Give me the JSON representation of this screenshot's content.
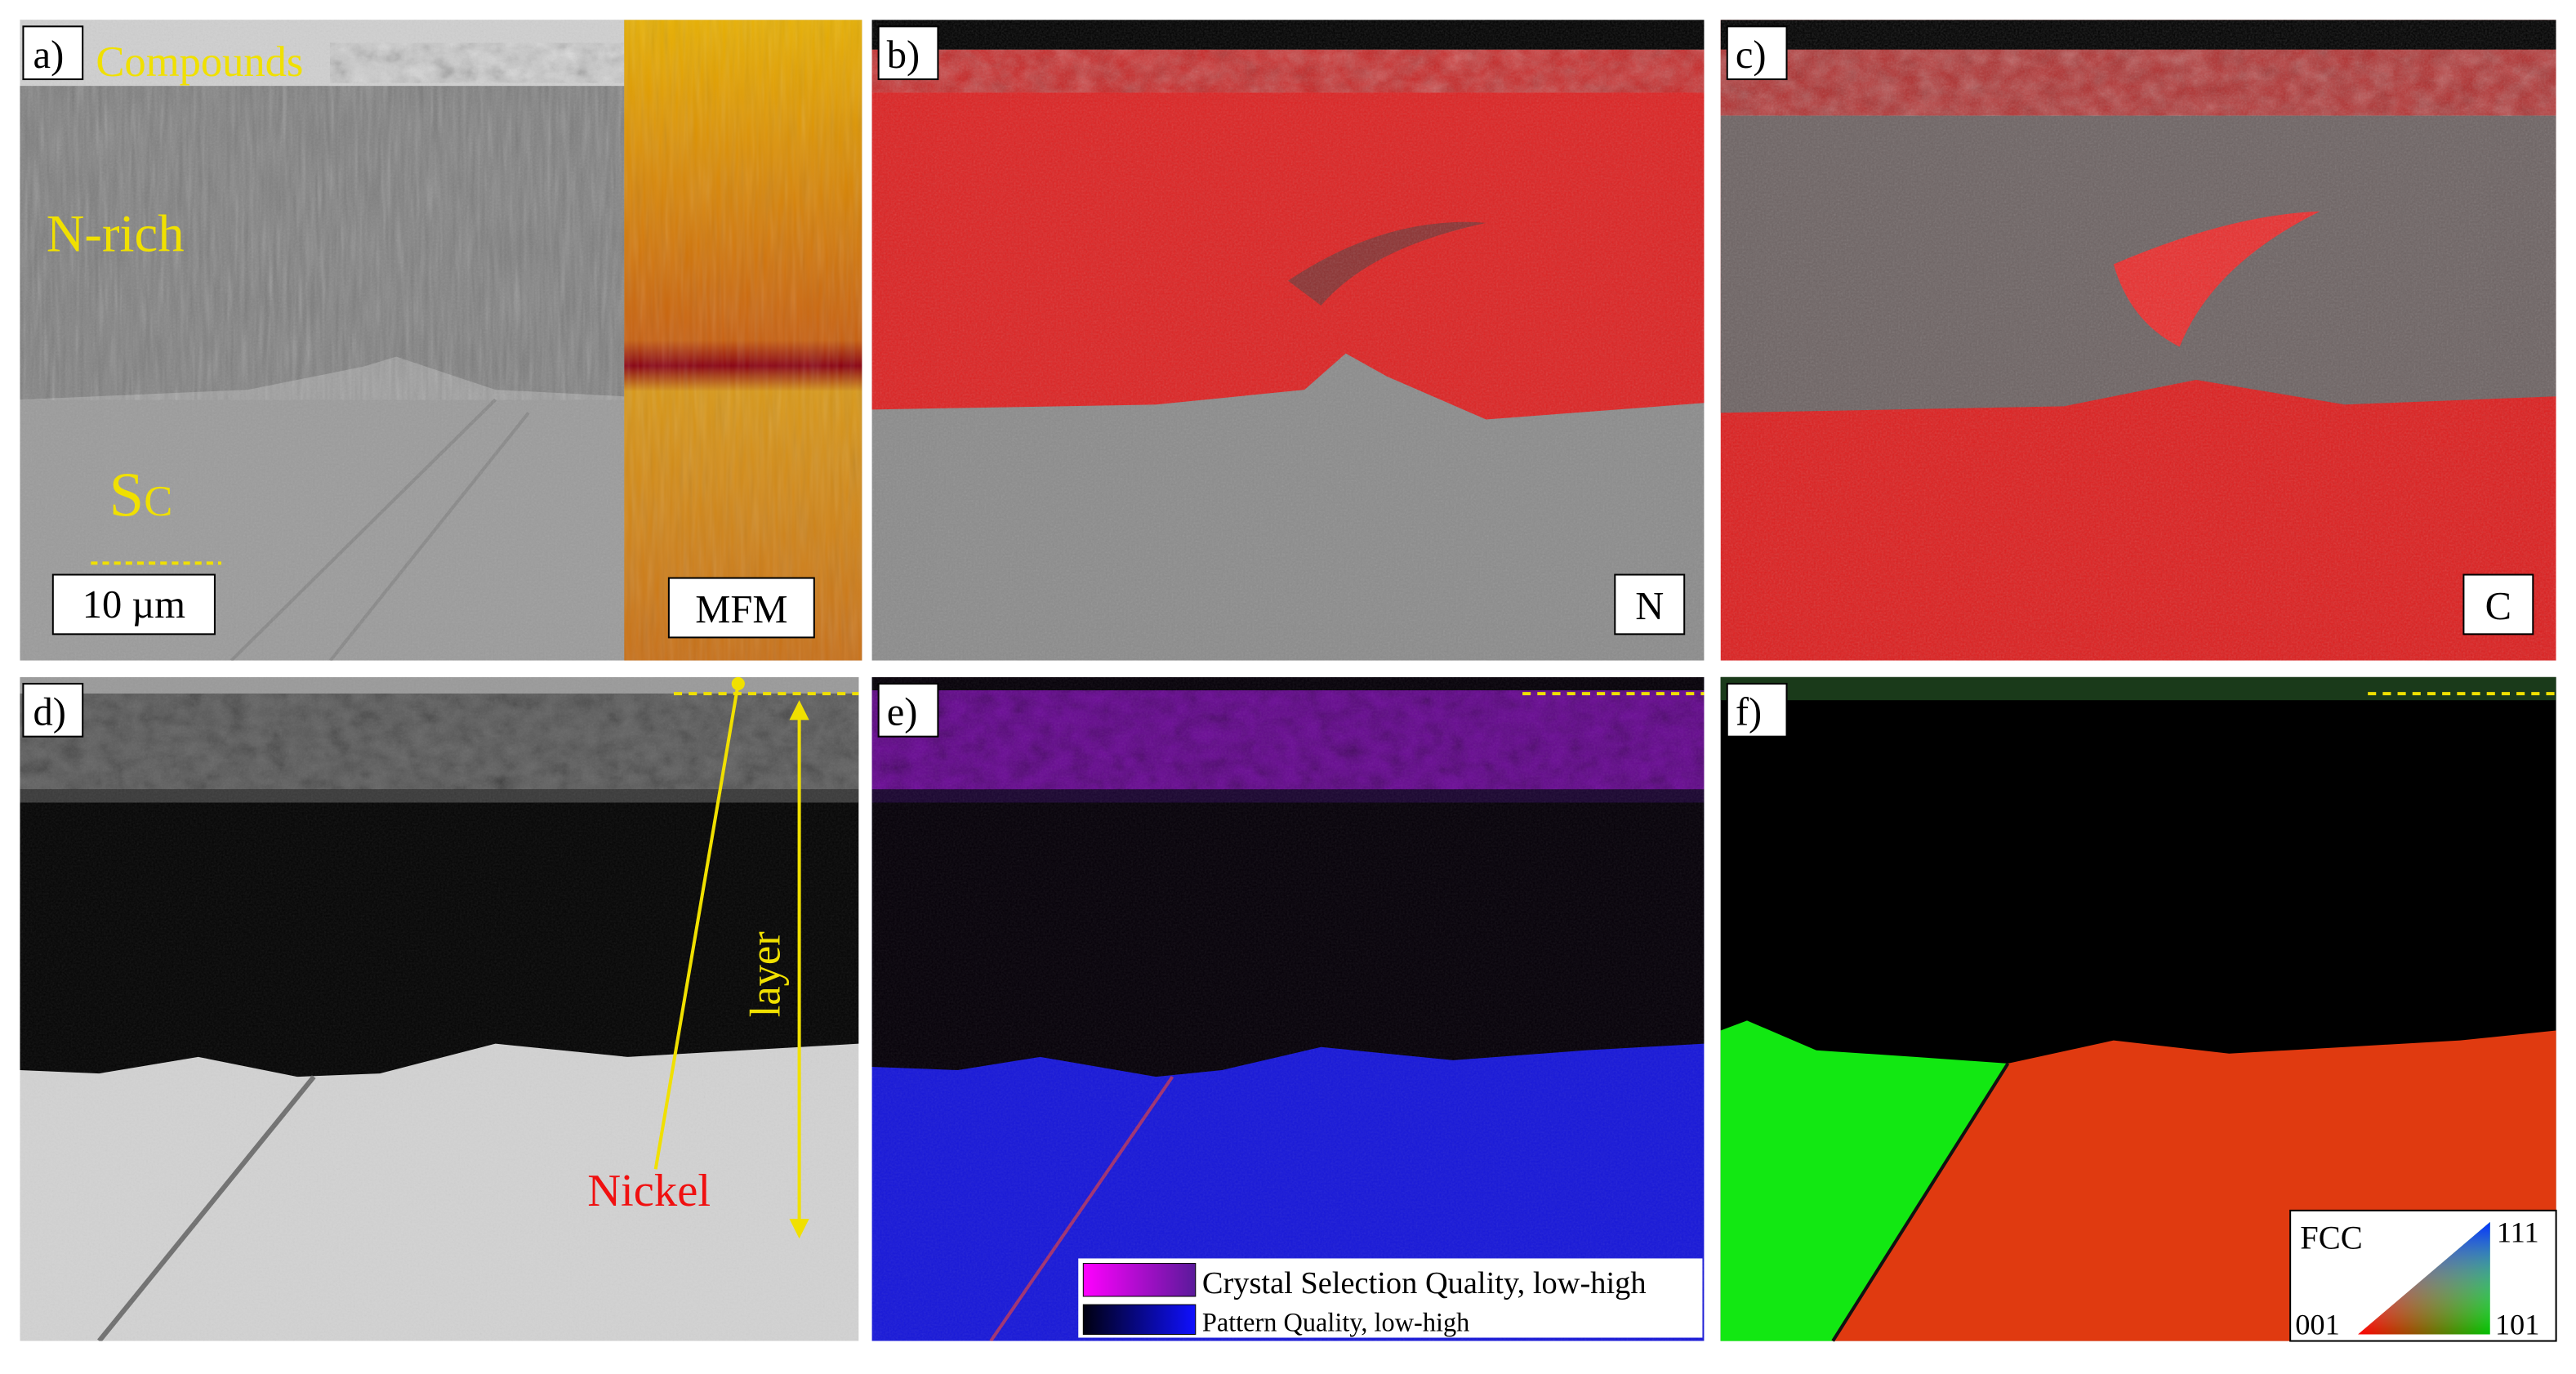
{
  "panel_a": {
    "label": "a)",
    "compounds": "Compounds",
    "n_rich": "N-rich",
    "substrate": {
      "main": "S",
      "sub": "C"
    },
    "scale_bar": "10 µm",
    "inset": "MFM"
  },
  "panel_b": {
    "label": "b)",
    "element": "N"
  },
  "panel_c": {
    "label": "c)",
    "element": "C"
  },
  "panel_d": {
    "label": "d)",
    "layer": "layer",
    "nickel": "Nickel"
  },
  "panel_e": {
    "label": "e)",
    "legend": [
      "Crystal Selection Quality, low-high",
      "Pattern Quality, low-high"
    ]
  },
  "panel_f": {
    "label": "f)",
    "ipf": {
      "title": "FCC",
      "corners": [
        "001",
        "101",
        "111"
      ]
    }
  }
}
